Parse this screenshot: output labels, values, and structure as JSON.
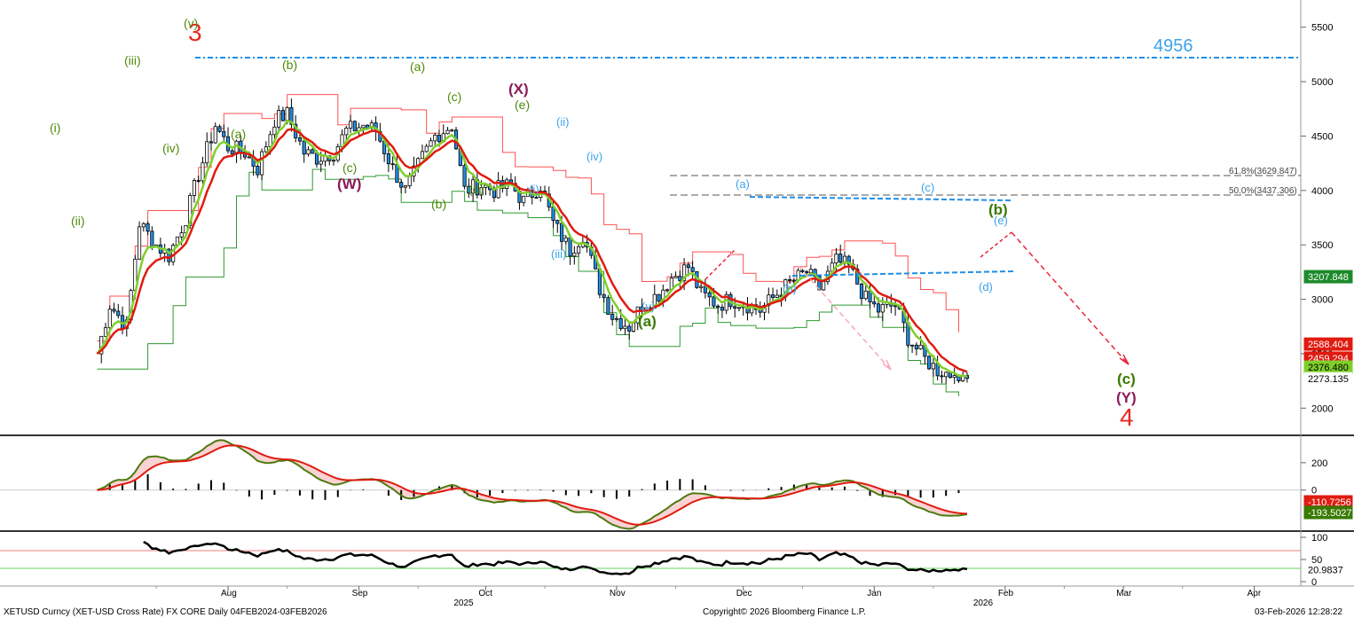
{
  "colors": {
    "green_label": "#4d8a0a",
    "dark_green": "#3a7a00",
    "blue_label": "#3ba3ea",
    "purple": "#8b1a5a",
    "red": "#e8281e",
    "ema_red": "#e01b10",
    "ema_green": "#7fcf2a",
    "cloud_red": "#ff5050",
    "cloud_green": "#2f9a2f",
    "candle_blue": "#1f8fe8",
    "resistance": "#1f8fe8"
  },
  "price_axis": {
    "ticks": [
      "5500",
      "5000",
      "4500",
      "4000",
      "3500",
      "3000",
      "2500",
      "2000"
    ],
    "tags": [
      {
        "text": "3207.848",
        "bg": "#1d8a2b",
        "fg": "#ffffff"
      },
      {
        "text": "2588.404",
        "bg": "#e01b10",
        "fg": "#ffffff"
      },
      {
        "text": "2459.294",
        "bg": "#e01b10",
        "fg": "#ffffff"
      },
      {
        "text": "2376.480",
        "bg": "#7fcf2a",
        "fg": "#000000"
      },
      {
        "text": "2273.135",
        "bg": "#ffffff",
        "fg": "#000000"
      }
    ]
  },
  "macd_axis": {
    "ticks": [
      "200",
      "0"
    ],
    "tags": [
      {
        "text": "-110.7256",
        "bg": "#e01b10",
        "fg": "#ffffff"
      },
      {
        "text": "-193.5027",
        "bg": "#3a7a00",
        "fg": "#ffffff"
      }
    ]
  },
  "rsi_axis": {
    "ticks": [
      "100",
      "50",
      "0"
    ],
    "tags": [
      {
        "text": "20.9837",
        "bg": "#ffffff",
        "fg": "#000000"
      }
    ]
  },
  "x_axis": {
    "months": [
      "Aug",
      "Sep",
      "Oct",
      "Nov",
      "Dec",
      "Jan",
      "Feb",
      "Mar",
      "Apr"
    ],
    "years": [
      "2025",
      "2026"
    ]
  },
  "footer": {
    "left": "XETUSD Curncy (XET-USD Cross Rate) FX CORE Daily 04FEB2024-03FEB2026",
    "center": "Copyright© 2026 Bloomberg Finance L.P.",
    "right": "03-Feb-2026 12:28:22"
  },
  "annotations": {
    "resistance_value": "4956",
    "fib_618": "61.8%(3629.847)",
    "fib_500": "50.0%(3437.306)",
    "waves": {
      "w3": "3",
      "w4": "4",
      "W": "(W)",
      "X": "(X)",
      "Y": "(Y)",
      "a_big": "(a)",
      "b_big": "(b)",
      "c_big": "(c)",
      "i": "(i)",
      "ii": "(ii)",
      "iii": "(iii)",
      "iv": "(iv)",
      "v": "(v)",
      "a": "(a)",
      "b": "(b)",
      "c": "(c)",
      "d": "(d)",
      "e": "(e)"
    }
  },
  "chart_data": {
    "type": "candlestick",
    "title": "XETUSD Curncy (XET-USD Cross Rate) FX CORE Daily",
    "y_range": [
      1750,
      5750
    ],
    "overlays": [
      "EMA fast (green)",
      "EMA slow (red)",
      "Ichimoku-style step bands"
    ],
    "close_path": [
      [
        "2025-07-01",
        2500
      ],
      [
        "2025-07-04",
        2950
      ],
      [
        "2025-07-08",
        2750
      ],
      [
        "2025-07-11",
        3700
      ],
      [
        "2025-07-15",
        3500
      ],
      [
        "2025-07-18",
        3400
      ],
      [
        "2025-07-22",
        3750
      ],
      [
        "2025-07-25",
        4150
      ],
      [
        "2025-07-29",
        4600
      ],
      [
        "2025-08-01",
        4400
      ],
      [
        "2025-08-05",
        4350
      ],
      [
        "2025-08-08",
        4200
      ],
      [
        "2025-08-12",
        4650
      ],
      [
        "2025-08-15",
        4700
      ],
      [
        "2025-08-19",
        4350
      ],
      [
        "2025-08-22",
        4300
      ],
      [
        "2025-08-26",
        4350
      ],
      [
        "2025-08-29",
        4550
      ],
      [
        "2025-09-02",
        4600
      ],
      [
        "2025-09-05",
        4550
      ],
      [
        "2025-09-09",
        4200
      ],
      [
        "2025-09-12",
        4000
      ],
      [
        "2025-09-16",
        4300
      ],
      [
        "2025-09-19",
        4500
      ],
      [
        "2025-09-23",
        4600
      ],
      [
        "2025-09-26",
        4000
      ],
      [
        "2025-09-30",
        4050
      ],
      [
        "2025-10-03",
        4000
      ],
      [
        "2025-10-07",
        4050
      ],
      [
        "2025-10-10",
        3900
      ],
      [
        "2025-10-14",
        4050
      ],
      [
        "2025-10-17",
        3700
      ],
      [
        "2025-10-21",
        3450
      ],
      [
        "2025-10-24",
        3600
      ],
      [
        "2025-10-28",
        3100
      ],
      [
        "2025-10-31",
        2850
      ],
      [
        "2025-11-04",
        2750
      ],
      [
        "2025-11-07",
        2950
      ],
      [
        "2025-11-11",
        3050
      ],
      [
        "2025-11-14",
        3200
      ],
      [
        "2025-11-18",
        3300
      ],
      [
        "2025-11-21",
        3050
      ],
      [
        "2025-11-25",
        2950
      ],
      [
        "2025-11-28",
        3000
      ],
      [
        "2025-12-02",
        2950
      ],
      [
        "2025-12-05",
        2900
      ],
      [
        "2025-12-09",
        3050
      ],
      [
        "2025-12-12",
        3150
      ],
      [
        "2025-12-16",
        3250
      ],
      [
        "2025-12-19",
        3100
      ],
      [
        "2025-12-23",
        3350
      ],
      [
        "2025-12-26",
        3300
      ],
      [
        "2025-12-30",
        3000
      ],
      [
        "2026-01-02",
        2900
      ],
      [
        "2026-01-06",
        2950
      ],
      [
        "2026-01-09",
        2650
      ],
      [
        "2026-01-13",
        2450
      ],
      [
        "2026-01-16",
        2350
      ],
      [
        "2026-01-20",
        2300
      ]
    ],
    "last_values": {
      "tag_1": 3207.848,
      "ema_slow": 2588.404,
      "ema_mid": 2459.294,
      "ema_fast": 2376.48,
      "last": 2273.135
    },
    "projection_target": 2200,
    "resistance": 4956,
    "fib_levels": [
      {
        "label": "61.8%",
        "value": 3629.847
      },
      {
        "label": "50.0%",
        "value": 3437.306
      }
    ],
    "macd": {
      "y_range": [
        -300,
        400
      ],
      "last_signal": -110.7256,
      "last_macd": -193.5027
    },
    "rsi": {
      "y_range": [
        0,
        100
      ],
      "overbought": 70,
      "oversold": 30,
      "last": 20.9837
    }
  }
}
